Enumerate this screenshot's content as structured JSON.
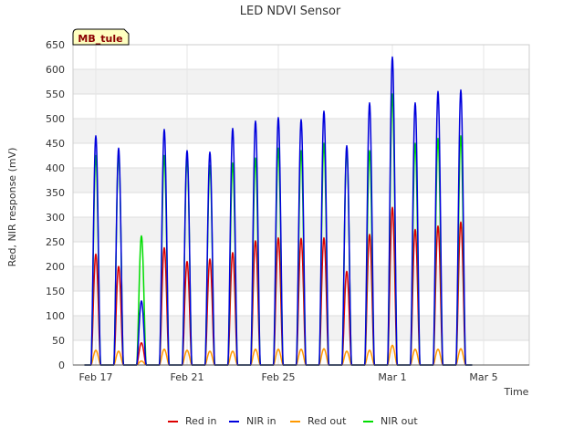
{
  "chart_data": {
    "type": "line",
    "title": "LED NDVI Sensor",
    "xlabel": "Time",
    "ylabel": "Red, NIR response (mV)",
    "site_badge": "MB_tule",
    "ylim": [
      0,
      650
    ],
    "yticks": [
      0,
      50,
      100,
      150,
      200,
      250,
      300,
      350,
      400,
      450,
      500,
      550,
      600,
      650
    ],
    "x_start": "2024-02-16",
    "x_end": "2024-03-07",
    "xticks": [
      {
        "date": "2024-02-17",
        "label": "Feb 17"
      },
      {
        "date": "2024-02-21",
        "label": "Feb 21"
      },
      {
        "date": "2024-02-25",
        "label": "Feb 25"
      },
      {
        "date": "2024-03-01",
        "label": "Mar 1"
      },
      {
        "date": "2024-03-05",
        "label": "Mar 5"
      }
    ],
    "grid": true,
    "legend_position": "bottom",
    "days": [
      "2024-02-17",
      "2024-02-18",
      "2024-02-19",
      "2024-02-20",
      "2024-02-21",
      "2024-02-22",
      "2024-02-23",
      "2024-02-24",
      "2024-02-25",
      "2024-02-26",
      "2024-02-27",
      "2024-02-28",
      "2024-02-29",
      "2024-03-01",
      "2024-03-02",
      "2024-03-03",
      "2024-03-04",
      "2024-03-05",
      "2024-03-06"
    ],
    "series": [
      {
        "name": "Red in",
        "color": "#dd0000",
        "daily_peak": [
          225,
          200,
          45,
          238,
          210,
          215,
          228,
          252,
          258,
          257,
          258,
          190,
          265,
          320,
          275,
          282,
          290
        ]
      },
      {
        "name": "NIR in",
        "color": "#0000dd",
        "daily_peak": [
          465,
          440,
          130,
          478,
          435,
          432,
          480,
          495,
          502,
          498,
          515,
          445,
          532,
          625,
          532,
          555,
          558
        ]
      },
      {
        "name": "Red out",
        "color": "#ff9900",
        "daily_peak": [
          30,
          28,
          8,
          32,
          30,
          28,
          28,
          32,
          32,
          32,
          33,
          28,
          30,
          40,
          32,
          32,
          33
        ]
      },
      {
        "name": "NIR out",
        "color": "#00dd00",
        "daily_peak": [
          425,
          430,
          262,
          425,
          422,
          405,
          410,
          420,
          440,
          435,
          450,
          440,
          435,
          550,
          450,
          460,
          465
        ]
      }
    ],
    "peak_dates": [
      "2024-02-17",
      "2024-02-18",
      "2024-02-19",
      "2024-02-20",
      "2024-02-21",
      "2024-02-22",
      "2024-02-23",
      "2024-02-24",
      "2024-02-25",
      "2024-02-26",
      "2024-02-27",
      "2024-02-28",
      "2024-02-29",
      "2024-03-01",
      "2024-03-02",
      "2024-03-03",
      "2024-03-04"
    ]
  }
}
